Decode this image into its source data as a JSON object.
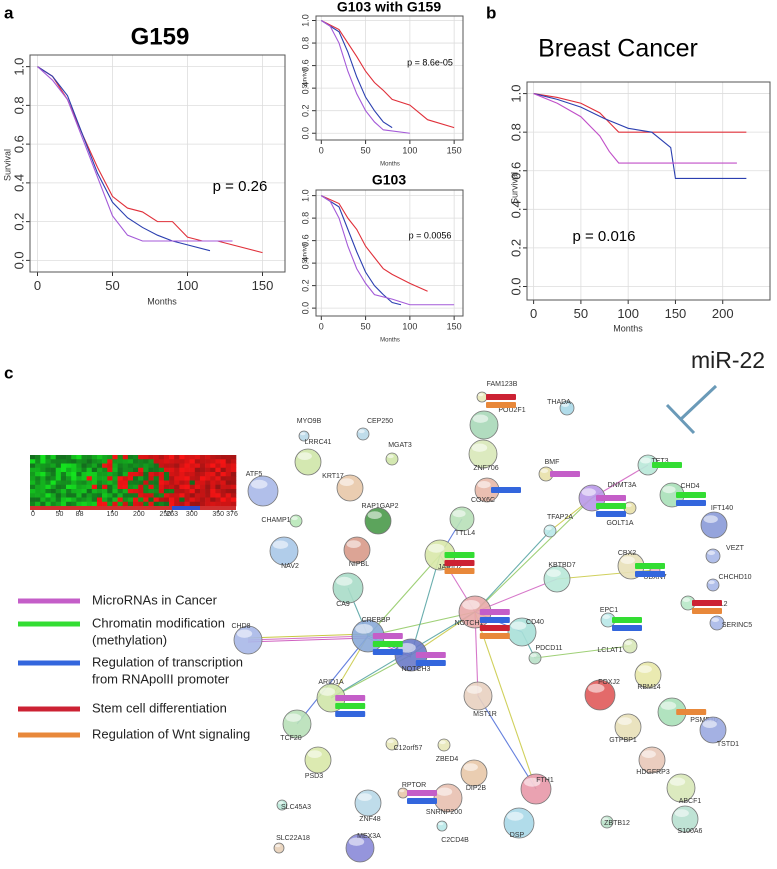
{
  "chart_data": [
    {
      "type": "line",
      "panel": "a",
      "title": "G159",
      "annotation": "p = 0.26",
      "x_label": "Months",
      "y_label": "Survival",
      "xlim": [
        -5,
        165
      ],
      "ylim": [
        -0.06,
        1.06
      ],
      "xticks": [
        0,
        50,
        100,
        150
      ],
      "yticks": [
        {
          "value": 0,
          "label": "0.0"
        },
        0.2,
        0.4,
        0.6,
        0.8,
        {
          "value": 1,
          "label": "1.0"
        }
      ],
      "grid": true,
      "series": [
        {
          "color": "#e0303a",
          "x": [
            0,
            10,
            20,
            30,
            40,
            50,
            60,
            70,
            80,
            90,
            100,
            110,
            120,
            150
          ],
          "values": [
            1,
            0.95,
            0.83,
            0.65,
            0.48,
            0.33,
            0.27,
            0.25,
            0.2,
            0.2,
            0.12,
            0.1,
            0.1,
            0.04
          ]
        },
        {
          "color": "#2b3fb0",
          "x": [
            0,
            10,
            20,
            30,
            40,
            50,
            60,
            70,
            80,
            90,
            100,
            115
          ],
          "values": [
            1,
            0.95,
            0.85,
            0.65,
            0.45,
            0.3,
            0.22,
            0.17,
            0.13,
            0.1,
            0.08,
            0.05
          ]
        },
        {
          "color": "#a45ad8",
          "x": [
            0,
            10,
            20,
            30,
            40,
            50,
            60,
            70,
            80,
            90,
            130
          ],
          "values": [
            1,
            0.93,
            0.83,
            0.63,
            0.43,
            0.23,
            0.13,
            0.1,
            0.1,
            0.1,
            0.1
          ]
        }
      ]
    },
    {
      "type": "line",
      "title": "G103  with  G159",
      "annotation": "p = 8.6e-05",
      "x_label": "Months",
      "y_label": "Survival",
      "xlim": [
        -6,
        160
      ],
      "ylim": [
        -0.06,
        1.04
      ],
      "xticks": [
        0,
        50,
        100,
        150
      ],
      "yticks": [
        {
          "value": 0,
          "label": "0.0"
        },
        0.2,
        0.4,
        0.6,
        0.8,
        {
          "value": 1,
          "label": "1.0"
        }
      ],
      "grid": true,
      "series": [
        {
          "color": "#e0303a",
          "x": [
            0,
            20,
            30,
            40,
            50,
            60,
            70,
            80,
            100,
            120,
            150
          ],
          "values": [
            1,
            0.92,
            0.8,
            0.68,
            0.55,
            0.45,
            0.38,
            0.3,
            0.25,
            0.12,
            0.05
          ]
        },
        {
          "color": "#2b3fb0",
          "x": [
            0,
            20,
            30,
            40,
            50,
            60,
            70,
            80
          ],
          "values": [
            1,
            0.9,
            0.72,
            0.5,
            0.32,
            0.2,
            0.1,
            0.05
          ]
        },
        {
          "color": "#a45ad8",
          "x": [
            0,
            10,
            20,
            30,
            40,
            50,
            60,
            70,
            100
          ],
          "values": [
            1,
            0.95,
            0.8,
            0.55,
            0.35,
            0.2,
            0.1,
            0.03,
            0
          ]
        }
      ]
    },
    {
      "type": "line",
      "title": "G103",
      "annotation": "p = 0.0056",
      "x_label": "Months",
      "y_label": "Survival",
      "xlim": [
        -6,
        160
      ],
      "ylim": [
        -0.07,
        1.05
      ],
      "xticks": [
        0,
        50,
        100,
        150
      ],
      "yticks": [
        {
          "value": 0,
          "label": "0.0"
        },
        0.2,
        0.4,
        0.6,
        0.8,
        {
          "value": 1,
          "label": "1.0"
        }
      ],
      "grid": true,
      "series": [
        {
          "color": "#e0303a",
          "x": [
            0,
            20,
            30,
            40,
            50,
            60,
            70,
            80,
            100,
            120
          ],
          "values": [
            1,
            0.93,
            0.8,
            0.7,
            0.55,
            0.45,
            0.35,
            0.3,
            0.22,
            0.15
          ]
        },
        {
          "color": "#2b3fb0",
          "x": [
            0,
            20,
            30,
            40,
            50,
            60,
            70,
            80,
            90
          ],
          "values": [
            1,
            0.9,
            0.7,
            0.5,
            0.32,
            0.2,
            0.12,
            0.05,
            0.03
          ]
        },
        {
          "color": "#a45ad8",
          "x": [
            0,
            10,
            20,
            30,
            40,
            50,
            60,
            80,
            100,
            150
          ],
          "values": [
            1,
            0.95,
            0.8,
            0.55,
            0.35,
            0.22,
            0.12,
            0.08,
            0.03,
            0.03
          ]
        }
      ]
    },
    {
      "type": "line",
      "panel": "b",
      "title": "Breast Cancer",
      "annotation": "p = 0.016",
      "x_label": "Months",
      "y_label": "Survival",
      "xlim": [
        -7,
        250
      ],
      "ylim": [
        -0.07,
        1.06
      ],
      "xticks": [
        0,
        50,
        100,
        150,
        200
      ],
      "yticks": [
        {
          "value": 0,
          "label": "0.0"
        },
        0.2,
        0.4,
        0.6,
        0.8,
        {
          "value": 1,
          "label": "1.0"
        }
      ],
      "grid": true,
      "series": [
        {
          "color": "#e0303a",
          "x": [
            0,
            25,
            50,
            70,
            80,
            90,
            100,
            225
          ],
          "values": [
            1,
            0.98,
            0.95,
            0.9,
            0.85,
            0.8,
            0.8,
            0.8
          ]
        },
        {
          "color": "#2b3fb0",
          "x": [
            0,
            25,
            50,
            75,
            100,
            125,
            145,
            150,
            225
          ],
          "values": [
            1,
            0.97,
            0.93,
            0.87,
            0.82,
            0.8,
            0.72,
            0.56,
            0.56
          ]
        },
        {
          "color": "#c04fc8",
          "x": [
            0,
            25,
            50,
            70,
            80,
            90,
            100,
            215
          ],
          "values": [
            1,
            0.95,
            0.88,
            0.78,
            0.7,
            0.64,
            0.64,
            0.64
          ]
        }
      ]
    }
  ],
  "network": {
    "panel": "c",
    "inhibitor": "miR-22",
    "heatmap": {
      "xlim": [
        0,
        376
      ],
      "xticks": [
        0,
        50,
        88,
        150,
        200,
        250,
        263,
        300,
        350,
        376
      ]
    },
    "legend": [
      {
        "label": [
          "MicroRNAs in Cancer"
        ],
        "color": "#c45ec8"
      },
      {
        "label": [
          "Chromatin modification",
          "(methylation)"
        ],
        "color": "#33dd33"
      },
      {
        "label": [
          "Regulation of transcription",
          "from RNApolII promoter"
        ],
        "color": "#3366dd"
      },
      {
        "label": [
          "Stem cell differentiation"
        ],
        "color": "#cc2233"
      },
      {
        "label": [
          "Regulation of Wnt signaling"
        ],
        "color": "#e8883a"
      }
    ],
    "nodes": [
      {
        "label": "MYO9B",
        "color": "#b8d8e8"
      },
      {
        "label": "CEP250",
        "color": "#b8d8e8"
      },
      {
        "label": "LRRC41",
        "color": "#cfe6a8"
      },
      {
        "label": "MGAT3",
        "color": "#cfe6a8"
      },
      {
        "label": "ATF5",
        "color": "#a8b8e8"
      },
      {
        "label": "KRT17",
        "color": "#e8c8a8"
      },
      {
        "label": "CHAMP1",
        "color": "#b8e8b8"
      },
      {
        "label": "RAP1GAP2",
        "color": "#4a9a4a"
      },
      {
        "label": "NAV2",
        "color": "#a8c8e8"
      },
      {
        "label": "NIPBL",
        "color": "#d89a8a"
      },
      {
        "label": "CA9",
        "color": "#a8dcc8"
      },
      {
        "label": "CHD8",
        "color": "#a8b8e8"
      },
      {
        "label": "CREBBP",
        "color": "#8aaad8"
      },
      {
        "label": "ARID1A",
        "color": "#cfe6a8"
      },
      {
        "label": "TCF20",
        "color": "#b8e0b8"
      },
      {
        "label": "C12orf57",
        "color": "#e8e8b8"
      },
      {
        "label": "PSD3",
        "color": "#d8e8a8"
      },
      {
        "label": "RPTOR",
        "color": "#e8c8a8"
      },
      {
        "label": "ZNF48",
        "color": "#b8d8e8"
      },
      {
        "label": "SLC45A3",
        "color": "#b8e8d8"
      },
      {
        "label": "SLC22A18",
        "color": "#e8d0b8"
      },
      {
        "label": "MEX3A",
        "color": "#8a8ad8"
      },
      {
        "label": "C2CD4B",
        "color": "#b8e8e8"
      },
      {
        "label": "SNRNP200",
        "color": "#e8c0b0"
      },
      {
        "label": "DIP2B",
        "color": "#e8c8a8"
      },
      {
        "label": "ZBED4",
        "color": "#e8e8b8"
      },
      {
        "label": "MST1R",
        "color": "#e8d0c0"
      },
      {
        "label": "FTH1",
        "color": "#e898a8"
      },
      {
        "label": "DSP",
        "color": "#a8d8e8"
      },
      {
        "label": "NOTCH3",
        "color": "#6a7ac8"
      },
      {
        "label": "NOTCH1",
        "color": "#e8a8a8"
      },
      {
        "label": "JARID2",
        "color": "#d8e8a8"
      },
      {
        "label": "TTLL4",
        "color": "#b8e0b8"
      },
      {
        "label": "COX6C",
        "color": "#e8b8a8"
      },
      {
        "label": "ZNF706",
        "color": "#d8e8b8"
      },
      {
        "label": "FAM123B",
        "color": "#e8e8b8"
      },
      {
        "label": "POU2F1",
        "color": "#a8d8b8"
      },
      {
        "label": "THADA",
        "color": "#a8d8e8"
      },
      {
        "label": "BMF",
        "color": "#e8e0a8"
      },
      {
        "label": "TET3",
        "color": "#b8e8d8"
      },
      {
        "label": "DNMT3A",
        "color": "#b898e8"
      },
      {
        "label": "CHD4",
        "color": "#a8e0b8"
      },
      {
        "label": "IFT140",
        "color": "#8a9ad8"
      },
      {
        "label": "GOLT1A",
        "color": "#e8e0a8"
      },
      {
        "label": "TFAP2A",
        "color": "#b8e8e8"
      },
      {
        "label": "VEZT",
        "color": "#a8b8e8"
      },
      {
        "label": "CBX2",
        "color": "#e8e0b8"
      },
      {
        "label": "UBXN7",
        "color": "#e8b8c8"
      },
      {
        "label": "KBTBD7",
        "color": "#b8e8d8"
      },
      {
        "label": "CHCHD10",
        "color": "#a8b8e8"
      },
      {
        "label": "EPC1",
        "color": "#b8e8e8"
      },
      {
        "label": "VANGL2",
        "color": "#b8e8c8"
      },
      {
        "label": "CD40",
        "color": "#a8e0d8"
      },
      {
        "label": "SERINC5",
        "color": "#a8b8e8"
      },
      {
        "label": "PDCD11",
        "color": "#b8e0c8"
      },
      {
        "label": "LCLAT1",
        "color": "#d8e8b8"
      },
      {
        "label": "RBM14",
        "color": "#e8e8a8"
      },
      {
        "label": "FOXJ2",
        "color": "#e05a5a"
      },
      {
        "label": "GTPBP1",
        "color": "#e8e0b8"
      },
      {
        "label": "PSMB10",
        "color": "#a8e0b8"
      },
      {
        "label": "TSTD1",
        "color": "#9aa8e0"
      },
      {
        "label": "HDGFRP3",
        "color": "#e8c8b8"
      },
      {
        "label": "ABCF1",
        "color": "#d8e8b8"
      },
      {
        "label": "ZBTB12",
        "color": "#b8e0c8"
      },
      {
        "label": "S100A6",
        "color": "#b8e0d0"
      }
    ],
    "terms": {
      "12": [
        0,
        1,
        2
      ],
      "13": [
        0,
        1,
        2
      ],
      "17": [
        0,
        2
      ],
      "29": [
        0,
        2
      ],
      "30": [
        0,
        2,
        3,
        4
      ],
      "31": [
        1,
        3,
        4
      ],
      "33": [
        2
      ],
      "35": [
        3,
        4
      ],
      "38": [
        0
      ],
      "39": [
        1
      ],
      "40": [
        0,
        1,
        2
      ],
      "41": [
        1,
        2
      ],
      "46": [
        1,
        2
      ],
      "50": [
        1,
        2
      ],
      "51": [
        3,
        4
      ],
      "59": [
        4
      ]
    }
  }
}
